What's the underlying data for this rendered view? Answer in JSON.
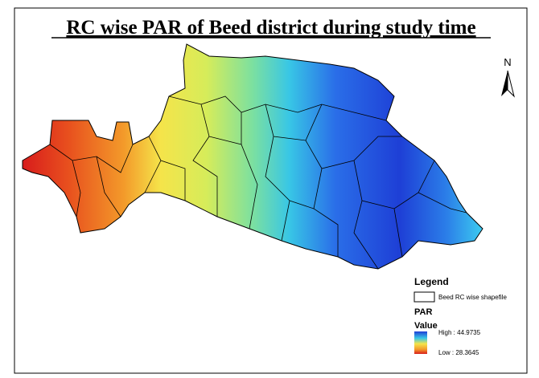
{
  "title": "RC wise PAR of Beed district during study time",
  "north_arrow": "N",
  "legend": {
    "title": "Legend",
    "boundary_label": "Beed RC wise shapefile",
    "layer": "PAR",
    "field": "Value",
    "high": "High : 44.9735",
    "low": "Low : 28.3645"
  }
}
